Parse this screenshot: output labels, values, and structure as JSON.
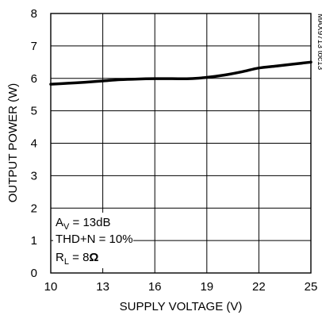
{
  "chart_data": {
    "type": "line",
    "xlabel": "SUPPLY VOLTAGE (V)",
    "ylabel": "OUTPUT POWER (W)",
    "xlim": [
      10,
      25
    ],
    "ylim": [
      0,
      8
    ],
    "x_ticks": [
      "10",
      "13",
      "16",
      "19",
      "22",
      "25"
    ],
    "y_ticks": [
      "0",
      "1",
      "2",
      "3",
      "4",
      "5",
      "6",
      "7",
      "8"
    ],
    "grid": true,
    "annotation": {
      "av_main": "A",
      "av_sub": "V",
      "av_rest": " = 13dB",
      "thd": "THD+N = 10%",
      "rl_main": "R",
      "rl_sub": "L",
      "rl_rest": " = 8",
      "rl_unit": "Ω"
    },
    "side_label": "MAX9713 toc13",
    "series": [
      {
        "x": [
          10,
          11,
          12,
          13,
          14,
          15,
          16,
          17,
          18,
          19,
          20,
          21,
          22,
          23,
          24,
          25
        ],
        "y": [
          5.82,
          5.85,
          5.88,
          5.92,
          5.96,
          5.98,
          5.99,
          5.99,
          5.99,
          6.03,
          6.1,
          6.2,
          6.32,
          6.38,
          6.44,
          6.5
        ]
      }
    ]
  }
}
